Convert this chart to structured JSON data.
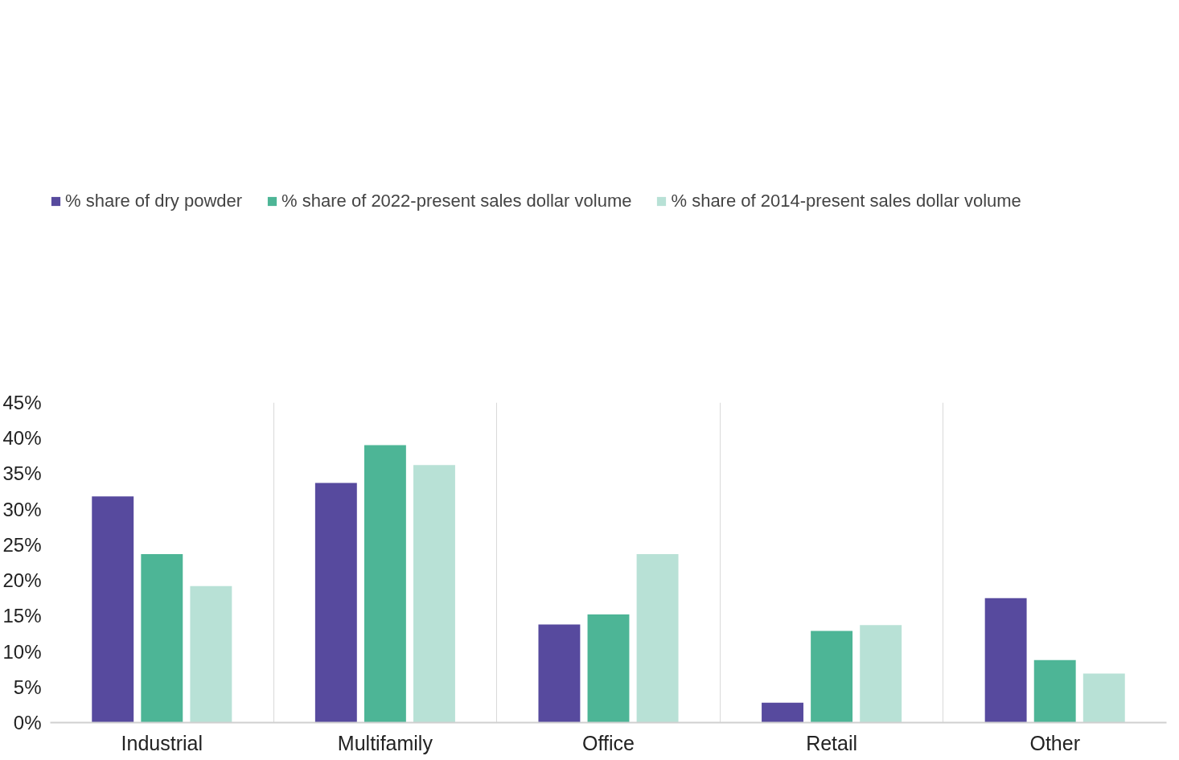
{
  "chart_data": {
    "type": "bar",
    "categories": [
      "Industrial",
      "Multifamily",
      "Office",
      "Retail",
      "Other"
    ],
    "series": [
      {
        "name": "% share of dry powder",
        "color": "#574a9e",
        "values": [
          31.8,
          33.7,
          13.8,
          2.8,
          17.5
        ]
      },
      {
        "name": "% share of 2022-present sales dollar volume",
        "color": "#4db596",
        "values": [
          23.7,
          39.0,
          15.2,
          12.9,
          8.8
        ]
      },
      {
        "name": "% share of 2014-present sales dollar volume",
        "color": "#b8e1d6",
        "values": [
          19.2,
          36.2,
          23.7,
          13.7,
          6.9
        ]
      }
    ],
    "ylim": [
      0,
      45
    ],
    "yticks": [
      {
        "value": 0,
        "label": "0%"
      },
      {
        "value": 5,
        "label": "5%"
      },
      {
        "value": 10,
        "label": "10%"
      },
      {
        "value": 15,
        "label": "15%"
      },
      {
        "value": 20,
        "label": "20%"
      },
      {
        "value": 25,
        "label": "25%"
      },
      {
        "value": 30,
        "label": "30%"
      },
      {
        "value": 35,
        "label": "35%"
      },
      {
        "value": 40,
        "label": "40%"
      },
      {
        "value": 45,
        "label": "45%"
      }
    ],
    "grid": "x",
    "legend": "top left"
  }
}
